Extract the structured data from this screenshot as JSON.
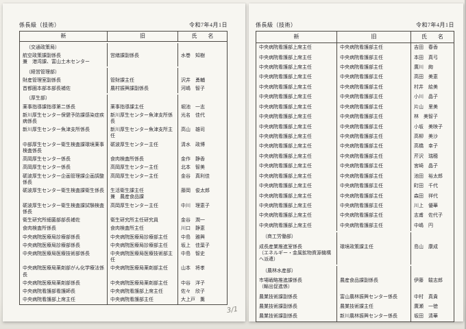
{
  "annotation": {
    "handwritten_mark": "3/1"
  },
  "pages": [
    {
      "title": "係長級（技術）",
      "date": "令和7年4月1日",
      "columns": {
        "new": "新",
        "old": "旧",
        "name": "氏　　名"
      },
      "rows": [
        {
          "type": "section",
          "label": "（交通政策局）"
        },
        {
          "new": "航空政策課副係長\n兼　港湾課、富山土木センター",
          "old": "営繕課副係長",
          "name": "水巻　知樹"
        },
        {
          "type": "section",
          "label": "（経営管理部）"
        },
        {
          "new": "財産管理室副係長",
          "old": "管財課主任",
          "name": "沢井　勇輔"
        },
        {
          "new": "首都圏本部本部長補佐",
          "old": "農村振興課副係長",
          "name": "河嶋　智子"
        },
        {
          "type": "section",
          "label": "（厚生部）"
        },
        {
          "new": "薬事指導課指導第二係長",
          "old": "薬事指導課主任",
          "name": "堀池　一志"
        },
        {
          "new": "新川厚生センター保健予防課感染症疾病係長",
          "old": "新川厚生センター魚津支所係長",
          "name": "光名　佳代"
        },
        {
          "new": "新川厚生センター魚津支所係長",
          "old": "新川厚生センター魚津支所主任",
          "name": "高山　雄司"
        },
        {
          "new": "中部厚生センター衛生検査課環境薬事検査係長",
          "old": "砺波厚生センター主任",
          "name": "清水　政博"
        },
        {
          "new": "高岡厚生センター係長",
          "old": "食肉検査所係長",
          "name": "金作　静香"
        },
        {
          "new": "高岡厚生センター係長",
          "old": "高岡厚生センター主任",
          "name": "北本　智美"
        },
        {
          "new": "砺波厚生センター企画管理課企画調整係長",
          "old": "高岡厚生センター主任",
          "name": "金谷　真利佳"
        },
        {
          "new": "砺波厚生センター衛生検査課衛生係長",
          "old": "生活衛生課主任\n兼　農産食品課",
          "name": "藤岡　俊太郎"
        },
        {
          "new": "砺波厚生センター衛生検査課試験検査係長",
          "old": "高岡厚生センター主任",
          "name": "中川　理恵子"
        },
        {
          "new": "衛生研究所細菌部部長補佐",
          "old": "衛生研究所主任研究員",
          "name": "金谷　潤一"
        },
        {
          "new": "食肉検査所係長",
          "old": "食肉検査所主任",
          "name": "川口　静恵"
        },
        {
          "new": "中央病院医療局診療部係長",
          "old": "中央病院医療局診療部主任",
          "name": "中島　雅興"
        },
        {
          "new": "中央病院医療局診療部係長",
          "old": "中央病院医療局診療部主任",
          "name": "坂上　佳葉子"
        },
        {
          "new": "中央病院医療局医療技術部係長",
          "old": "中央病院医療局医療技術部主任",
          "name": "中島　智史"
        },
        {
          "new": "中央病院医療局薬剤部がん化学療法係長",
          "old": "中央病院医療局薬剤部主任",
          "name": "山本　将孝"
        },
        {
          "new": "中央病院医療局薬剤部係長",
          "old": "中央病院医療局薬剤部主任",
          "name": "中谷　洋子"
        },
        {
          "new": "中央病院看護部看護師長",
          "old": "中央病院看護部上席主任",
          "name": "佐々　欣子"
        },
        {
          "new": "中央病院看護部上席主任",
          "old": "中央病院看護部主任",
          "name": "大上戸　薫"
        }
      ]
    },
    {
      "title": "係長級（技術）",
      "date": "令和7年4月1日",
      "columns": {
        "new": "新",
        "old": "旧",
        "name": "氏　　名"
      },
      "rows": [
        {
          "new": "中央病院看護部上席主任",
          "old": "中央病院看護部主任",
          "name": "吉田　春香"
        },
        {
          "new": "中央病院看護部上席主任",
          "old": "中央病院看護部主任",
          "name": "本田　真弓"
        },
        {
          "new": "中央病院看護部上席主任",
          "old": "中央病院看護部主任",
          "name": "廣川　絢"
        },
        {
          "new": "中央病院看護部上席主任",
          "old": "中央病院看護部主任",
          "name": "高田　美恵"
        },
        {
          "new": "中央病院看護部上席主任",
          "old": "中央病院看護部主任",
          "name": "村井　絵美"
        },
        {
          "new": "中央病院看護部上席主任",
          "old": "中央病院看護部主任",
          "name": "小川　晶子"
        },
        {
          "new": "中央病院看護部上席主任",
          "old": "中央病院看護部主任",
          "name": "片山　里美"
        },
        {
          "new": "中央病院看護部上席主任",
          "old": "中央病院看護部主任",
          "name": "林　美智子"
        },
        {
          "new": "中央病院看護部上席主任",
          "old": "中央病院看護部主任",
          "name": "小坂　美映子"
        },
        {
          "new": "中央病院看護部上席主任",
          "old": "中央病院看護部主任",
          "name": "高柳　美沙"
        },
        {
          "new": "中央病院看護部上席主任",
          "old": "中央病院看護部主任",
          "name": "高橋　幸子"
        },
        {
          "new": "中央病院看護部上席主任",
          "old": "中央病院看護部主任",
          "name": "芹沢　瑞穂"
        },
        {
          "new": "中央病院看護部上席主任",
          "old": "中央病院看護部主任",
          "name": "宮崎　晶子"
        },
        {
          "new": "中央病院看護部上席主任",
          "old": "中央病院看護部主任",
          "name": "池田　裕太郎"
        },
        {
          "new": "中央病院看護部上席主任",
          "old": "中央病院看護部主任",
          "name": "町田　千代"
        },
        {
          "new": "中央病院看護部上席主任",
          "old": "中央病院看護部主任",
          "name": "森田　祥代"
        },
        {
          "new": "中央病院看護部上席主任",
          "old": "中央病院看護部主任",
          "name": "川上　優華"
        },
        {
          "new": "中央病院看護部上席主任",
          "old": "中央病院看護部主任",
          "name": "志甫　佐代子"
        },
        {
          "new": "中央病院看護部上席主任",
          "old": "中央病院看護部主任",
          "name": "中嶋　円"
        },
        {
          "type": "section",
          "label": "（商工労働部）"
        },
        {
          "new": "成長産業推進室係長\n（エネルギー・金属鉱物資源機構\nへ派遣）",
          "old": "環境政策課主任",
          "name": "島山　康成"
        },
        {
          "type": "section",
          "label": "（農林水産部）"
        },
        {
          "new": "市場戦略推進課係長\n（輸出促進係）",
          "old": "農産食品課副係長",
          "name": "伊藤　駿志郎"
        },
        {
          "new": "農業技術課副係長",
          "old": "富山農林振興センター係長",
          "name": "中村　真貴"
        },
        {
          "new": "農業技術課副係長",
          "old": "農業技術課主任",
          "name": "廣瀬　一徳"
        },
        {
          "new": "農業技術課副係長",
          "old": "新川農林振興センター係長",
          "name": "坂田　清華"
        }
      ]
    }
  ]
}
